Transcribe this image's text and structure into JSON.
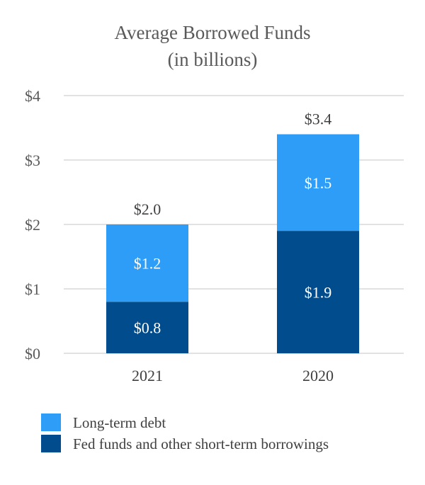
{
  "chart_data": {
    "type": "stacked-bar",
    "title": "Average Borrowed Funds",
    "subtitle": "(in billions)",
    "xlabel": "",
    "ylabel": "",
    "categories": [
      "2021",
      "2020"
    ],
    "series": [
      {
        "name": "Fed funds and other short-term borrowings",
        "values": [
          0.8,
          1.9
        ],
        "labels": [
          "$0.8",
          "$1.9"
        ],
        "color": "#004C8C"
      },
      {
        "name": "Long-term debt",
        "values": [
          1.2,
          1.5
        ],
        "labels": [
          "$1.2",
          "$1.5"
        ],
        "color": "#2E9DF7"
      }
    ],
    "totals": [
      2.0,
      3.4
    ],
    "total_labels": [
      "$2.0",
      "$3.4"
    ],
    "ylim": [
      0,
      4
    ],
    "yticks": [
      0,
      1,
      2,
      3,
      4
    ],
    "ytick_labels": [
      "$0",
      "$1",
      "$2",
      "$3",
      "$4"
    ],
    "grid": true,
    "legend": {
      "position": "bottom-left",
      "entries": [
        {
          "name": "Long-term debt",
          "color": "#2E9DF7"
        },
        {
          "name": "Fed funds and other short-term borrowings",
          "color": "#004C8C"
        }
      ]
    },
    "colors": {
      "gridline": "#D9D9D9",
      "text": "#595959"
    }
  }
}
